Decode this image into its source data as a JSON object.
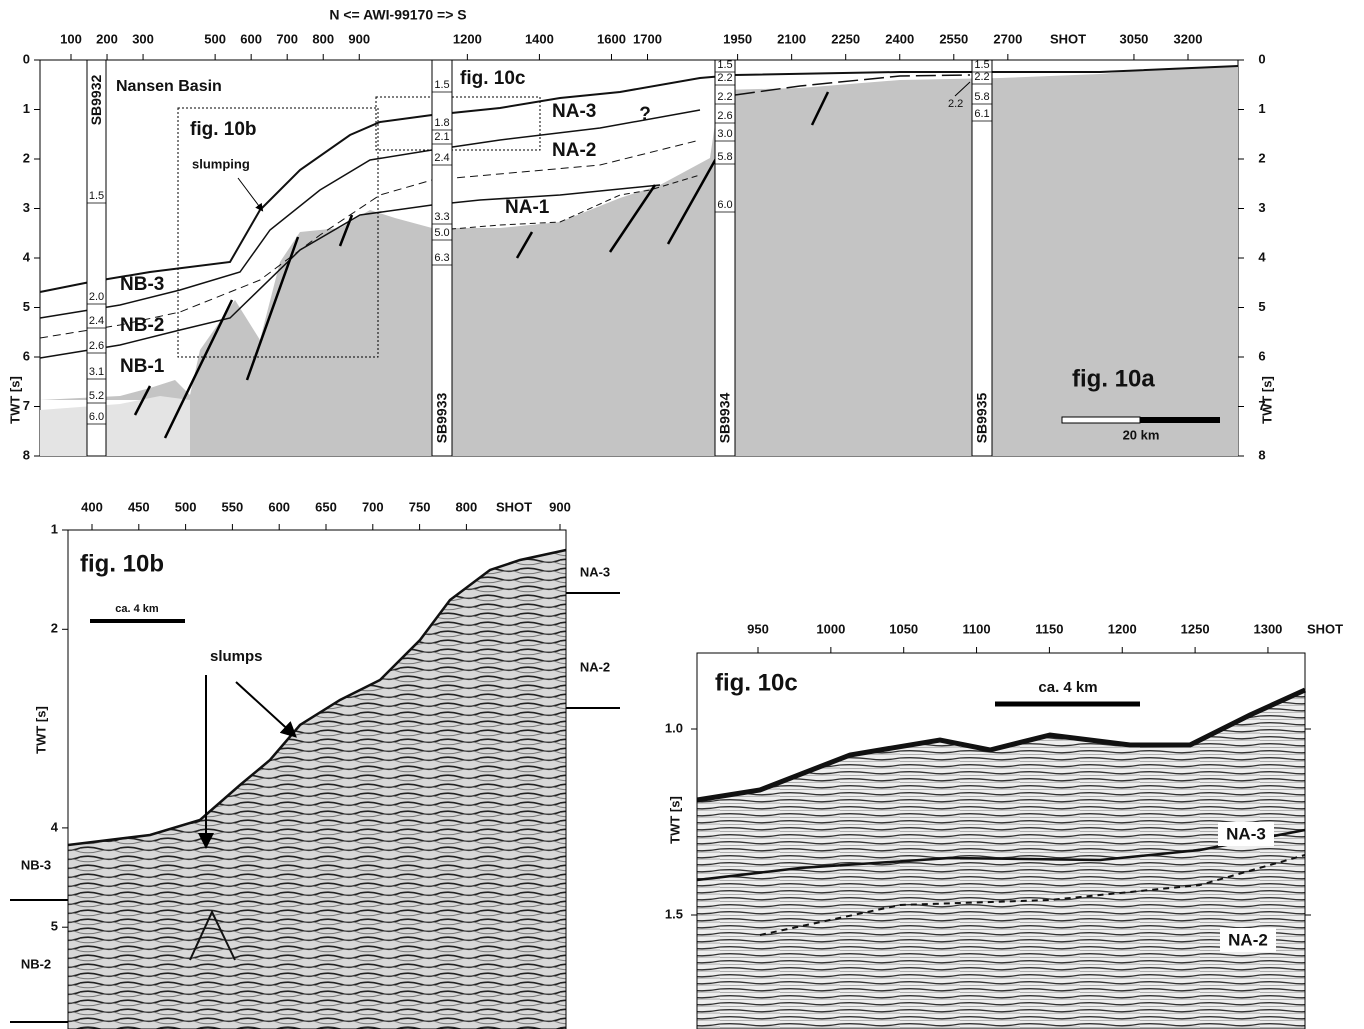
{
  "fig10a": {
    "title": "N <=  AWI-99170  => S",
    "x_label": "SHOT",
    "y_label": "TWT [s]",
    "xticks": [
      100,
      200,
      300,
      500,
      600,
      700,
      800,
      900,
      1200,
      1400,
      1600,
      1700,
      1950,
      2100,
      2250,
      2400,
      2550,
      2700,
      3050,
      3200
    ],
    "yticks": [
      0,
      1,
      2,
      3,
      4,
      5,
      6,
      7,
      8
    ],
    "panel_label": "fig. 10a",
    "scale_bar": "20 km",
    "basin": "Nansen Basin",
    "inset_labels": [
      "fig. 10b",
      "fig. 10c"
    ],
    "slumping": "slumping",
    "question": "?",
    "units_south": [
      "NA-3",
      "NA-2",
      "NA-1"
    ],
    "units_north": [
      "NB-3",
      "NB-2",
      "NB-1"
    ],
    "velocity_note": "2.2",
    "stations": [
      {
        "name": "SB9932",
        "velocities": [
          "1.5",
          "2.0",
          "2.4",
          "2.6",
          "3.1",
          "5.2",
          "6.0"
        ]
      },
      {
        "name": "SB9933",
        "velocities": [
          "1.5",
          "1.8",
          "2.1",
          "2.4",
          "3.3",
          "5.0",
          "6.3"
        ]
      },
      {
        "name": "SB9934",
        "velocities": [
          "1.5",
          "2.2",
          "2.2",
          "2.6",
          "3.0",
          "5.8",
          "6.0"
        ]
      },
      {
        "name": "SB9935",
        "velocities": [
          "1.5",
          "2.2",
          "5.8",
          "6.1"
        ]
      }
    ]
  },
  "fig10b": {
    "panel_label": "fig. 10b",
    "x_label": "SHOT",
    "y_label": "TWT [s]",
    "xticks": [
      400,
      450,
      500,
      550,
      600,
      650,
      700,
      750,
      800,
      900
    ],
    "yticks": [
      1,
      2,
      4,
      5
    ],
    "scale_bar": "ca. 4 km",
    "slumps": "slumps",
    "units": [
      "NA-3",
      "NA-2",
      "NB-3",
      "NB-2"
    ]
  },
  "fig10c": {
    "panel_label": "fig. 10c",
    "x_label": "SHOT",
    "y_label": "TWT [s]",
    "xticks": [
      950,
      1000,
      1050,
      1100,
      1150,
      1200,
      1250,
      1300
    ],
    "yticks": [
      {
        "value": 1.0,
        "label": "1.0"
      },
      1.5
    ],
    "scale_bar": "ca. 4 km",
    "units": [
      "NA-3",
      "NA-2"
    ]
  }
}
